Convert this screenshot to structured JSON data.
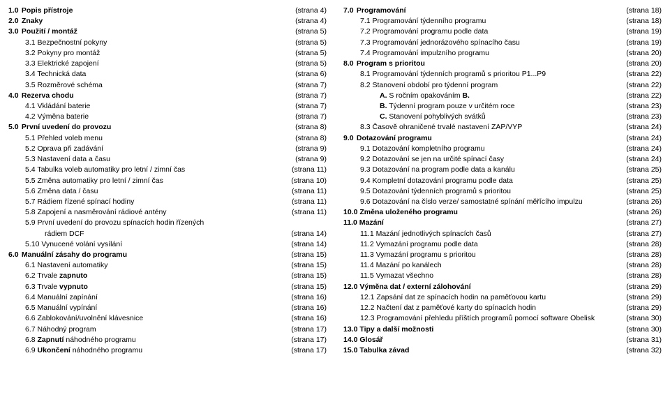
{
  "left": [
    {
      "n": "1.0",
      "t": "Popis přístroje",
      "p": "(strana 4)",
      "b": true,
      "i": 0
    },
    {
      "n": "2.0",
      "t": "Znaky",
      "p": "(strana 4)",
      "b": true,
      "i": 0
    },
    {
      "n": "3.0",
      "t": "Použití / montáž",
      "p": "(strana 5)",
      "b": true,
      "i": 0
    },
    {
      "n": "",
      "t": "3.1 Bezpečnostní pokyny",
      "p": "(strana 5)",
      "b": false,
      "i": 1
    },
    {
      "n": "",
      "t": "3.2 Pokyny pro montáž",
      "p": "(strana 5)",
      "b": false,
      "i": 1
    },
    {
      "n": "",
      "t": "3.3 Elektrické zapojení",
      "p": "(strana 5)",
      "b": false,
      "i": 1
    },
    {
      "n": "",
      "t": "3.4 Technická data",
      "p": "(strana 6)",
      "b": false,
      "i": 1
    },
    {
      "n": "",
      "t": "3.5 Rozměrové schéma",
      "p": "(strana 7)",
      "b": false,
      "i": 1
    },
    {
      "n": "4.0",
      "t": "Rezerva chodu",
      "p": "(strana 7)",
      "b": true,
      "i": 0
    },
    {
      "n": "",
      "t": "4.1 Vkládání baterie",
      "p": "(strana 7)",
      "b": false,
      "i": 1
    },
    {
      "n": "",
      "t": "4.2 Výměna baterie",
      "p": "(strana 7)",
      "b": false,
      "i": 1
    },
    {
      "n": "5.0",
      "t": "První uvedení do provozu",
      "p": "(strana 8)",
      "b": true,
      "i": 0
    },
    {
      "n": "",
      "t": "5.1 Přehled voleb menu",
      "p": "(strana 8)",
      "b": false,
      "i": 1
    },
    {
      "n": "",
      "t": "5.2 Oprava při zadávání",
      "p": "(strana 9)",
      "b": false,
      "i": 1
    },
    {
      "n": "",
      "t": "5.3 Nastavení data a času",
      "p": "(strana 9)",
      "b": false,
      "i": 1
    },
    {
      "n": "",
      "t": "5.4 Tabulka voleb automatiky pro letní / zimní čas",
      "p": "(strana 11)",
      "b": false,
      "i": 1
    },
    {
      "n": "",
      "t": "5.5 Změna automatiky pro letní / zimní čas",
      "p": "(strana 10)",
      "b": false,
      "i": 1
    },
    {
      "n": "",
      "t": "5.6 Změna data / času",
      "p": "(strana 11)",
      "b": false,
      "i": 1
    },
    {
      "n": "",
      "t": "5.7 Rádiem řízené spínací hodiny",
      "p": "(strana 11)",
      "b": false,
      "i": 1
    },
    {
      "n": "",
      "t": "5.8 Zapojení a nasměrování rádiové antény",
      "p": "(strana 11)",
      "b": false,
      "i": 1
    },
    {
      "n": "",
      "t": "5.9 První uvedení do provozu spínacích hodin řízených",
      "p": "",
      "b": false,
      "i": 1
    },
    {
      "n": "",
      "t": "rádiem DCF",
      "p": "(strana 14)",
      "b": false,
      "i": 2
    },
    {
      "n": "",
      "t": "5.10 Vynucené volání vysílání",
      "p": "(strana 14)",
      "b": false,
      "i": 1
    },
    {
      "n": "6.0",
      "t": "Manuální zásahy do programu",
      "p": "(strana 15)",
      "b": true,
      "i": 0
    },
    {
      "n": "",
      "t": "6.1 Nastavení automatiky",
      "p": "(strana 15)",
      "b": false,
      "i": 1
    },
    {
      "n": "",
      "t": "6.2 Trvale <b>zapnuto</b>",
      "p": "(strana 15)",
      "b": false,
      "i": 1,
      "html": true
    },
    {
      "n": "",
      "t": "6.3 Trvale <b>vypnuto</b>",
      "p": "(strana 15)",
      "b": false,
      "i": 1,
      "html": true
    },
    {
      "n": "",
      "t": "6.4 Manuální zapínání",
      "p": "(strana 16)",
      "b": false,
      "i": 1
    },
    {
      "n": "",
      "t": "6.5 Manuální vypínání",
      "p": "(strana 16)",
      "b": false,
      "i": 1
    },
    {
      "n": "",
      "t": "6.6 Zablokování/uvolnění klávesnice",
      "p": "(strana 16)",
      "b": false,
      "i": 1
    },
    {
      "n": "",
      "t": "6.7 Náhodný program",
      "p": "(strana 17)",
      "b": false,
      "i": 1
    },
    {
      "n": "",
      "t": "6.8 <b>Zapnutí</b> náhodného programu",
      "p": "(strana 17)",
      "b": false,
      "i": 1,
      "html": true
    },
    {
      "n": "",
      "t": "6.9 <b>Ukončení</b> náhodného programu",
      "p": "(strana 17)",
      "b": false,
      "i": 1,
      "html": true
    }
  ],
  "right": [
    {
      "n": "7.0",
      "t": "Programování",
      "p": "(strana 18)",
      "b": true,
      "i": 0
    },
    {
      "n": "",
      "t": "7.1 Programování týdenního programu",
      "p": "(strana 18)",
      "b": false,
      "i": 1
    },
    {
      "n": "",
      "t": "7.2 Programování programu podle data",
      "p": "(strana 19)",
      "b": false,
      "i": 1
    },
    {
      "n": "",
      "t": "7.3 Programování jednorázového spínacího času",
      "p": "(strana 19)",
      "b": false,
      "i": 1
    },
    {
      "n": "",
      "t": "7.4 Programování impulzního programu",
      "p": "(strana 20)",
      "b": false,
      "i": 1
    },
    {
      "n": "8.0",
      "t": "Program s prioritou",
      "p": "(strana 20)",
      "b": true,
      "i": 0
    },
    {
      "n": "",
      "t": "8.1 Programování týdenních programů s prioritou P1...P9",
      "p": "(strana 22)",
      "b": false,
      "i": 1
    },
    {
      "n": "",
      "t": "8.2 Stanovení období pro týdenní program",
      "p": "(strana 22)",
      "b": false,
      "i": 1
    },
    {
      "n": "",
      "t": "<b>A.</b> S ročním opakováním <b>B.</b>",
      "p": "(strana 22)",
      "b": false,
      "i": 2,
      "html": true
    },
    {
      "n": "",
      "t": "<b>B.</b> Týdenní program pouze v určitém roce",
      "p": "(strana 23)",
      "b": false,
      "i": 2,
      "html": true
    },
    {
      "n": "",
      "t": "<b>C.</b> Stanovení pohyblivých svátků",
      "p": "(strana 23)",
      "b": false,
      "i": 2,
      "html": true
    },
    {
      "n": "",
      "t": "8.3 Časově ohraničené trvalé nastavení ZAP/VYP",
      "p": "(strana 24)",
      "b": false,
      "i": 1
    },
    {
      "n": "9.0",
      "t": "Dotazování programu",
      "p": "(strana 24)",
      "b": true,
      "i": 0
    },
    {
      "n": "",
      "t": "9.1 Dotazování kompletního programu",
      "p": "(strana 24)",
      "b": false,
      "i": 1
    },
    {
      "n": "",
      "t": "9.2 Dotazování se jen na určité spínací časy",
      "p": "(strana 24)",
      "b": false,
      "i": 1
    },
    {
      "n": "",
      "t": "9.3 Dotazování na program podle data a kanálu",
      "p": "(strana 25)",
      "b": false,
      "i": 1
    },
    {
      "n": "",
      "t": "9.4 Kompletní dotazování programu podle data",
      "p": "(strana 25)",
      "b": false,
      "i": 1
    },
    {
      "n": "",
      "t": "9.5 Dotazování týdenních programů s prioritou",
      "p": "(strana 25)",
      "b": false,
      "i": 1
    },
    {
      "n": "",
      "t": "9.6 Dotazování na číslo verze/ samostatné spínání měřícího impulzu",
      "p": "(strana 26)",
      "b": false,
      "i": 1
    },
    {
      "n": "10.0",
      "t": "Změna uloženého programu",
      "p": "(strana 26)",
      "b": true,
      "i": 0
    },
    {
      "n": "11.0",
      "t": "Mazání",
      "p": "(strana 27)",
      "b": true,
      "i": 0
    },
    {
      "n": "",
      "t": "11.1 Mazání jednotlivých spínacích časů",
      "p": "(strana 27)",
      "b": false,
      "i": 1
    },
    {
      "n": "",
      "t": "11.2 Vymazání programu podle data",
      "p": "(strana 28)",
      "b": false,
      "i": 1
    },
    {
      "n": "",
      "t": "11.3 Vymazání programu s prioritou",
      "p": "(strana 28)",
      "b": false,
      "i": 1
    },
    {
      "n": "",
      "t": "11.4 Mazání po kanálech",
      "p": "(strana 28)",
      "b": false,
      "i": 1
    },
    {
      "n": "",
      "t": "11.5 Vymazat všechno",
      "p": "(strana 28)",
      "b": false,
      "i": 1
    },
    {
      "n": "12.0",
      "t": "Výměna dat / externí zálohování",
      "p": "(strana 29)",
      "b": true,
      "i": 0
    },
    {
      "n": "",
      "t": "12.1 Zapsání dat ze spínacích hodin na paměťovou kartu",
      "p": "(strana 29)",
      "b": false,
      "i": 1
    },
    {
      "n": "",
      "t": "12.2 Načtení dat z paměťové karty do spínacích hodin",
      "p": "(strana 29)",
      "b": false,
      "i": 1
    },
    {
      "n": "",
      "t": "12.3 Programování přehledu příštích programů pomocí software Obelisk",
      "p": "(strana 30)",
      "b": false,
      "i": 1
    },
    {
      "n": "13.0",
      "t": "Tipy a další možnosti",
      "p": "(strana 30)",
      "b": true,
      "i": 0
    },
    {
      "n": "14.0",
      "t": "Glosář",
      "p": "(strana 31)",
      "b": true,
      "i": 0
    },
    {
      "n": "15.0",
      "t": "Tabulka závad",
      "p": "(strana 32)",
      "b": true,
      "i": 0
    }
  ]
}
